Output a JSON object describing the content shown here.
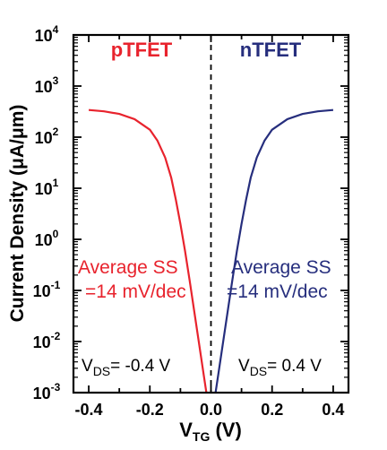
{
  "chart_data": {
    "type": "line",
    "xlabel": {
      "main": "V",
      "sub": "TG",
      "unit": " (V)"
    },
    "ylabel": "Current Density (μA/μm)",
    "xlim": [
      -0.45,
      0.45
    ],
    "ylim": [
      0.001,
      10000
    ],
    "y_scale": "log",
    "grid": false,
    "x_ticks": [
      "-0.4",
      "-0.2",
      "0.0",
      "0.2",
      "0.4"
    ],
    "x_tick_values": [
      -0.4,
      -0.2,
      0.0,
      0.2,
      0.4
    ],
    "y_tick_values": [
      0.001,
      0.01,
      0.1,
      1,
      10,
      100,
      1000,
      10000
    ],
    "y_ticks": [
      {
        "base": "10",
        "exp": "-3"
      },
      {
        "base": "10",
        "exp": "-2"
      },
      {
        "base": "10",
        "exp": "-1"
      },
      {
        "base": "10",
        "exp": "0"
      },
      {
        "base": "10",
        "exp": "1"
      },
      {
        "base": "10",
        "exp": "2"
      },
      {
        "base": "10",
        "exp": "3"
      },
      {
        "base": "10",
        "exp": "4"
      }
    ],
    "vline_x": 0.0,
    "series": [
      {
        "name": "pTFET",
        "color": "#e8232d",
        "x": [
          -0.4,
          -0.35,
          -0.3,
          -0.25,
          -0.2,
          -0.175,
          -0.15,
          -0.13,
          -0.115,
          -0.1,
          -0.085,
          -0.07,
          -0.055,
          -0.04,
          -0.025,
          -0.015
        ],
        "y": [
          340,
          320,
          285,
          225,
          140,
          85,
          40,
          16,
          6,
          2,
          0.6,
          0.16,
          0.04,
          0.01,
          0.0025,
          0.001
        ]
      },
      {
        "name": "nTFET",
        "color": "#262e7d",
        "x": [
          0.4,
          0.35,
          0.3,
          0.25,
          0.2,
          0.175,
          0.15,
          0.13,
          0.115,
          0.1,
          0.085,
          0.07,
          0.055,
          0.04,
          0.025,
          0.015
        ],
        "y": [
          340,
          320,
          285,
          225,
          140,
          85,
          40,
          16,
          6,
          2,
          0.6,
          0.16,
          0.04,
          0.01,
          0.0025,
          0.001
        ]
      }
    ],
    "annotations": {
      "p_ss_line1": "Average SS",
      "p_ss_line2": "=14 mV/dec",
      "n_ss_line1": "Average SS",
      "n_ss_line2": "=14 mV/dec",
      "p_vds_main": "V",
      "p_vds_sub": "DS",
      "p_vds_value": "= -0.4 V",
      "n_vds_main": "V",
      "n_vds_sub": "DS",
      "n_vds_value": "= 0.4 V"
    }
  }
}
